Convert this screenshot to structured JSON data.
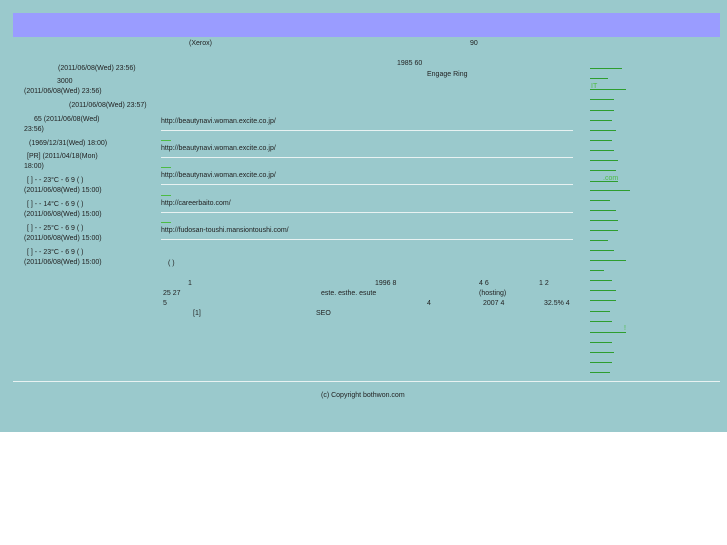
{
  "header": {
    "note_left": "(Xerox)",
    "note_right": "90"
  },
  "left_column": [
    {
      "a": "(2011/06/08(Wed) 23:56)"
    },
    {
      "a": "3000",
      "b": "(2011/06/08(Wed) 23:56)"
    },
    {
      "a": "(2011/06/08(Wed) 23:57)"
    },
    {
      "a": "65          (2011/06/08(Wed)",
      "b": "23:56)"
    },
    {
      "a": "(1969/12/31(Wed) 18:00)"
    },
    {
      "a": "[PR]                   (2011/04/18(Mon)",
      "b": "18:00)"
    },
    {
      "a": "[     ]   -    -    23°C - 6 9 ( )",
      "b": "(2011/06/08(Wed) 15:00)"
    },
    {
      "a": "[     ]   -    -    14°C - 6 9 ( )",
      "b": "(2011/06/08(Wed) 15:00)"
    },
    {
      "a": "[     ]   -    -    25°C - 6 9 ( )",
      "b": "(2011/06/08(Wed) 15:00)"
    },
    {
      "a": "[     ]   -    -    23°C - 6 9 ( )",
      "b": "(2011/06/08(Wed) 15:00)"
    }
  ],
  "main": {
    "top_line1": "1985    60",
    "top_line2": "Engage Ring",
    "urls": [
      "http://beautynavi.woman.excite.co.jp/",
      "http://beautynavi.woman.excite.co.jp/",
      "http://beautynavi.woman.excite.co.jp/",
      "http://careerbaito.com/",
      "http://fudosan-toushi.mansiontoushi.com/"
    ],
    "paren": "(    )",
    "para": {
      "r1c1": "1",
      "r1c2": "1996    8",
      "r1c3": "4 6",
      "r1c4": "1 2",
      "r2c1": "25 27",
      "r2c2": "este. esthe. esute",
      "r2c3": "(hosting)",
      "r3c1": "5",
      "r3c2": "4",
      "r3c3": "2007 4",
      "r3c4": "32.5% 4",
      "r4c1": "[1]",
      "r4c2": "SEO"
    }
  },
  "right_column": {
    "link_it": "IT",
    "link_com": ".com",
    "link_excl": "!"
  },
  "footer": {
    "copyright": "(c) Copyright bothwon.com"
  }
}
